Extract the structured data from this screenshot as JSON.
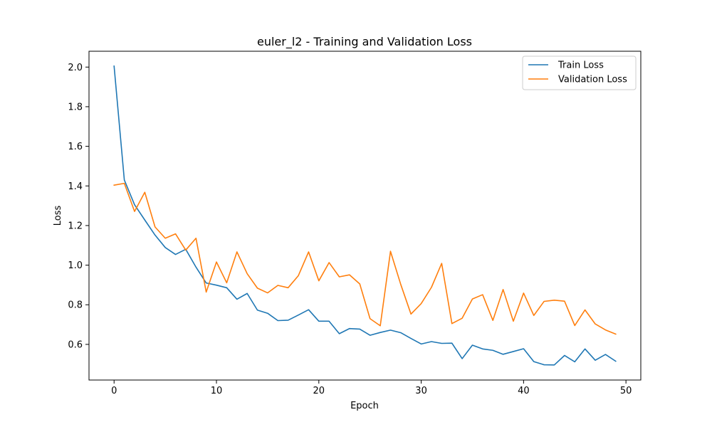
{
  "chart_data": {
    "type": "line",
    "title": "euler_l2 - Training and Validation Loss",
    "xlabel": "Epoch",
    "ylabel": "Loss",
    "xlim": [
      -2.45,
      51.45
    ],
    "ylim": [
      0.42,
      2.08
    ],
    "xticks": [
      0,
      10,
      20,
      30,
      40,
      50
    ],
    "yticks": [
      0.6,
      0.8,
      1.0,
      1.2,
      1.4,
      1.6,
      1.8,
      2.0
    ],
    "ytick_labels": [
      "0.6",
      "0.8",
      "1.0",
      "1.2",
      "1.4",
      "1.6",
      "1.8",
      "2.0"
    ],
    "legend_position": "top-right",
    "grid": false,
    "x": [
      0,
      1,
      2,
      3,
      4,
      5,
      6,
      7,
      8,
      9,
      10,
      11,
      12,
      13,
      14,
      15,
      16,
      17,
      18,
      19,
      20,
      21,
      22,
      23,
      24,
      25,
      26,
      27,
      28,
      29,
      30,
      31,
      32,
      33,
      34,
      35,
      36,
      37,
      38,
      39,
      40,
      41,
      42,
      43,
      44,
      45,
      46,
      47,
      48,
      49
    ],
    "series": [
      {
        "name": "Train Loss",
        "color": "#1f77b4",
        "values": [
          2.005,
          1.43,
          1.305,
          1.228,
          1.152,
          1.089,
          1.054,
          1.08,
          0.99,
          0.91,
          0.899,
          0.886,
          0.828,
          0.857,
          0.773,
          0.757,
          0.72,
          0.722,
          0.748,
          0.775,
          0.717,
          0.717,
          0.654,
          0.68,
          0.677,
          0.646,
          0.66,
          0.672,
          0.659,
          0.63,
          0.602,
          0.614,
          0.605,
          0.606,
          0.528,
          0.596,
          0.577,
          0.57,
          0.55,
          0.564,
          0.578,
          0.513,
          0.497,
          0.496,
          0.544,
          0.512,
          0.577,
          0.52,
          0.549,
          0.515
        ]
      },
      {
        "name": "Validation Loss",
        "color": "#ff7f0e",
        "values": [
          1.404,
          1.413,
          1.271,
          1.368,
          1.193,
          1.136,
          1.158,
          1.076,
          1.136,
          0.864,
          1.016,
          0.911,
          1.067,
          0.957,
          0.884,
          0.86,
          0.898,
          0.886,
          0.947,
          1.067,
          0.921,
          1.013,
          0.941,
          0.951,
          0.905,
          0.73,
          0.694,
          1.07,
          0.903,
          0.753,
          0.806,
          0.888,
          1.009,
          0.705,
          0.732,
          0.829,
          0.851,
          0.721,
          0.877,
          0.717,
          0.859,
          0.746,
          0.817,
          0.823,
          0.818,
          0.695,
          0.774,
          0.703,
          0.673,
          0.652
        ]
      }
    ]
  }
}
